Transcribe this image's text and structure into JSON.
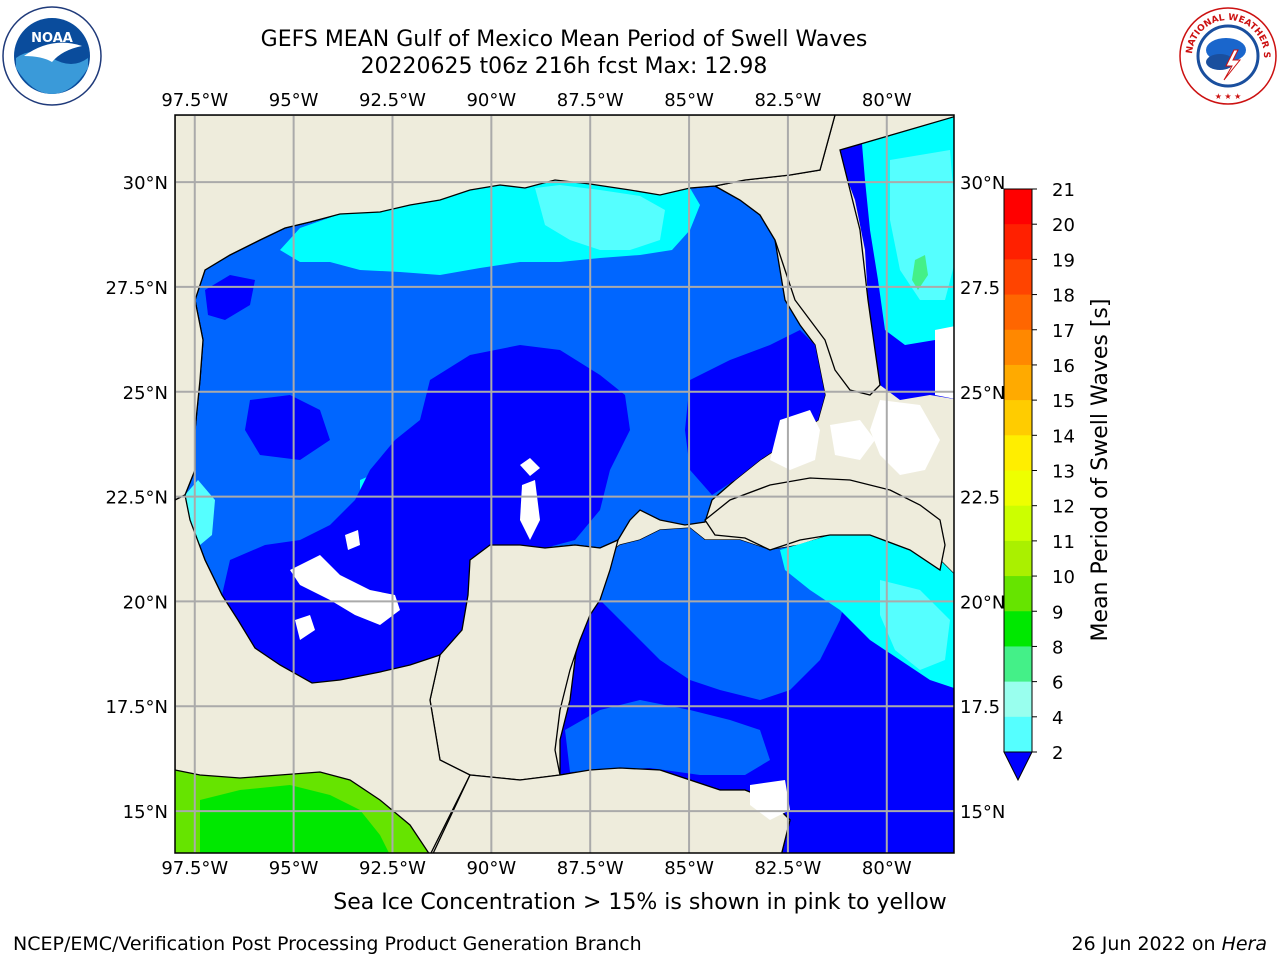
{
  "header": {
    "title": "GEFS MEAN Gulf of Mexico Mean Period of Swell Waves",
    "subtitle": "20220625 t06z 216h fcst   Max: 12.98"
  },
  "logos": {
    "left": {
      "label": "NOAA",
      "icon": "noaa-logo-icon"
    },
    "right": {
      "icon": "nws-logo-icon",
      "ring_text": "NATIONAL WEATHER SERVICE"
    }
  },
  "map": {
    "lon_labels": [
      "97.5°W",
      "95°W",
      "92.5°W",
      "90°W",
      "87.5°W",
      "85°W",
      "82.5°W",
      "80°W"
    ],
    "lon_values": [
      -97.5,
      -95,
      -92.5,
      -90,
      -87.5,
      -85,
      -82.5,
      -80
    ],
    "lat_labels": [
      "30°N",
      "27.5°N",
      "25°N",
      "22.5°N",
      "20°N",
      "17.5°N",
      "15°N"
    ],
    "lat_labels_right": [
      "30°N",
      "27.5",
      "25°N",
      "22.5",
      "20°N",
      "17.5",
      "15°N"
    ],
    "lat_values": [
      30,
      27.5,
      25,
      22.5,
      20,
      17.5,
      15
    ],
    "extent": {
      "lon": [
        -98,
        -78.3
      ],
      "lat": [
        14,
        31.6
      ]
    },
    "land_color": "#eeecdc",
    "grid_color": "#aaaaaa"
  },
  "colorbar": {
    "label": "Mean Period of Swell Waves [s]",
    "ticks": [
      "21",
      "20",
      "19",
      "18",
      "17",
      "16",
      "15",
      "14",
      "13",
      "12",
      "11",
      "10",
      "9",
      "8",
      "6",
      "4",
      "2"
    ],
    "colors": [
      "#ff0000",
      "#ff2000",
      "#ff4400",
      "#ff6600",
      "#ff8800",
      "#ffaa00",
      "#ffcc00",
      "#ffee00",
      "#eeff00",
      "#ccff00",
      "#aaf000",
      "#66e400",
      "#00e800",
      "#44f088",
      "#99ffee",
      "#55ffff",
      "#00ffff",
      "#0066ff",
      "#0000ff"
    ]
  },
  "footer": {
    "note": "Sea Ice Concentration > 15% is shown in pink to yellow",
    "credit": "NCEP/EMC/Verification Post Processing Product Generation Branch",
    "date": "26 Jun 2022 on ",
    "machine": "Hera"
  }
}
